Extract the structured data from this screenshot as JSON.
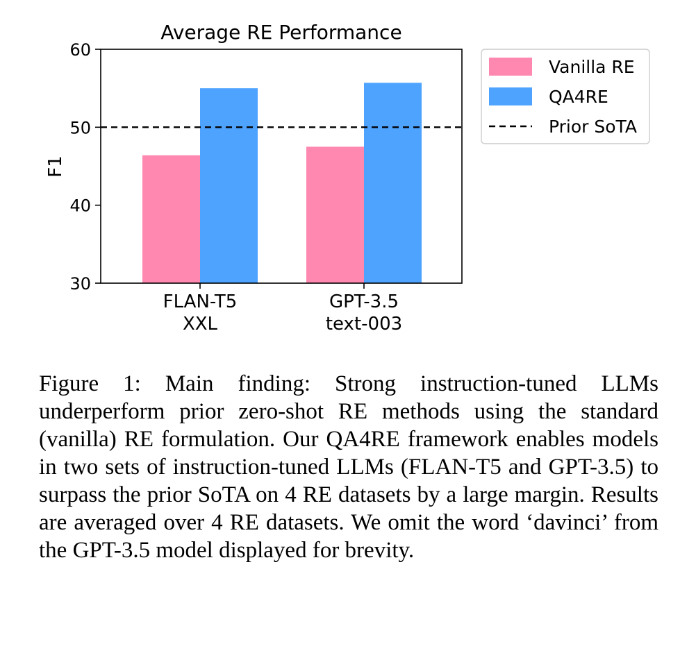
{
  "chart_data": {
    "type": "bar",
    "title": "Average RE Performance",
    "xlabel": "",
    "ylabel": "F1",
    "ylim": [
      30,
      60
    ],
    "yticks": [
      30,
      40,
      50,
      60
    ],
    "categories": [
      [
        "FLAN-T5",
        "XXL"
      ],
      [
        "GPT-3.5",
        "text-003"
      ]
    ],
    "series": [
      {
        "name": "Vanilla RE",
        "values": [
          46.4,
          47.5
        ],
        "color": "#ff88b0"
      },
      {
        "name": "QA4RE",
        "values": [
          55.0,
          55.7
        ],
        "color": "#4ea3ff"
      }
    ],
    "reference_line": {
      "name": "Prior SoTA",
      "value": 50.0,
      "style": "dashed",
      "color": "#000000"
    },
    "grid": false,
    "legend_position": "outside-right"
  },
  "caption": "Figure 1: Main finding: Strong instruction-tuned LLMs underperform prior zero-shot RE methods using the standard (vanilla) RE formulation. Our QA4RE framework enables models in two sets of instruction-tuned LLMs (FLAN-T5 and GPT-3.5) to surpass the prior SoTA on 4 RE datasets by a large margin. Results are averaged over 4 RE datasets. We omit the word ‘davinci’ from the GPT-3.5 model displayed for brevity."
}
